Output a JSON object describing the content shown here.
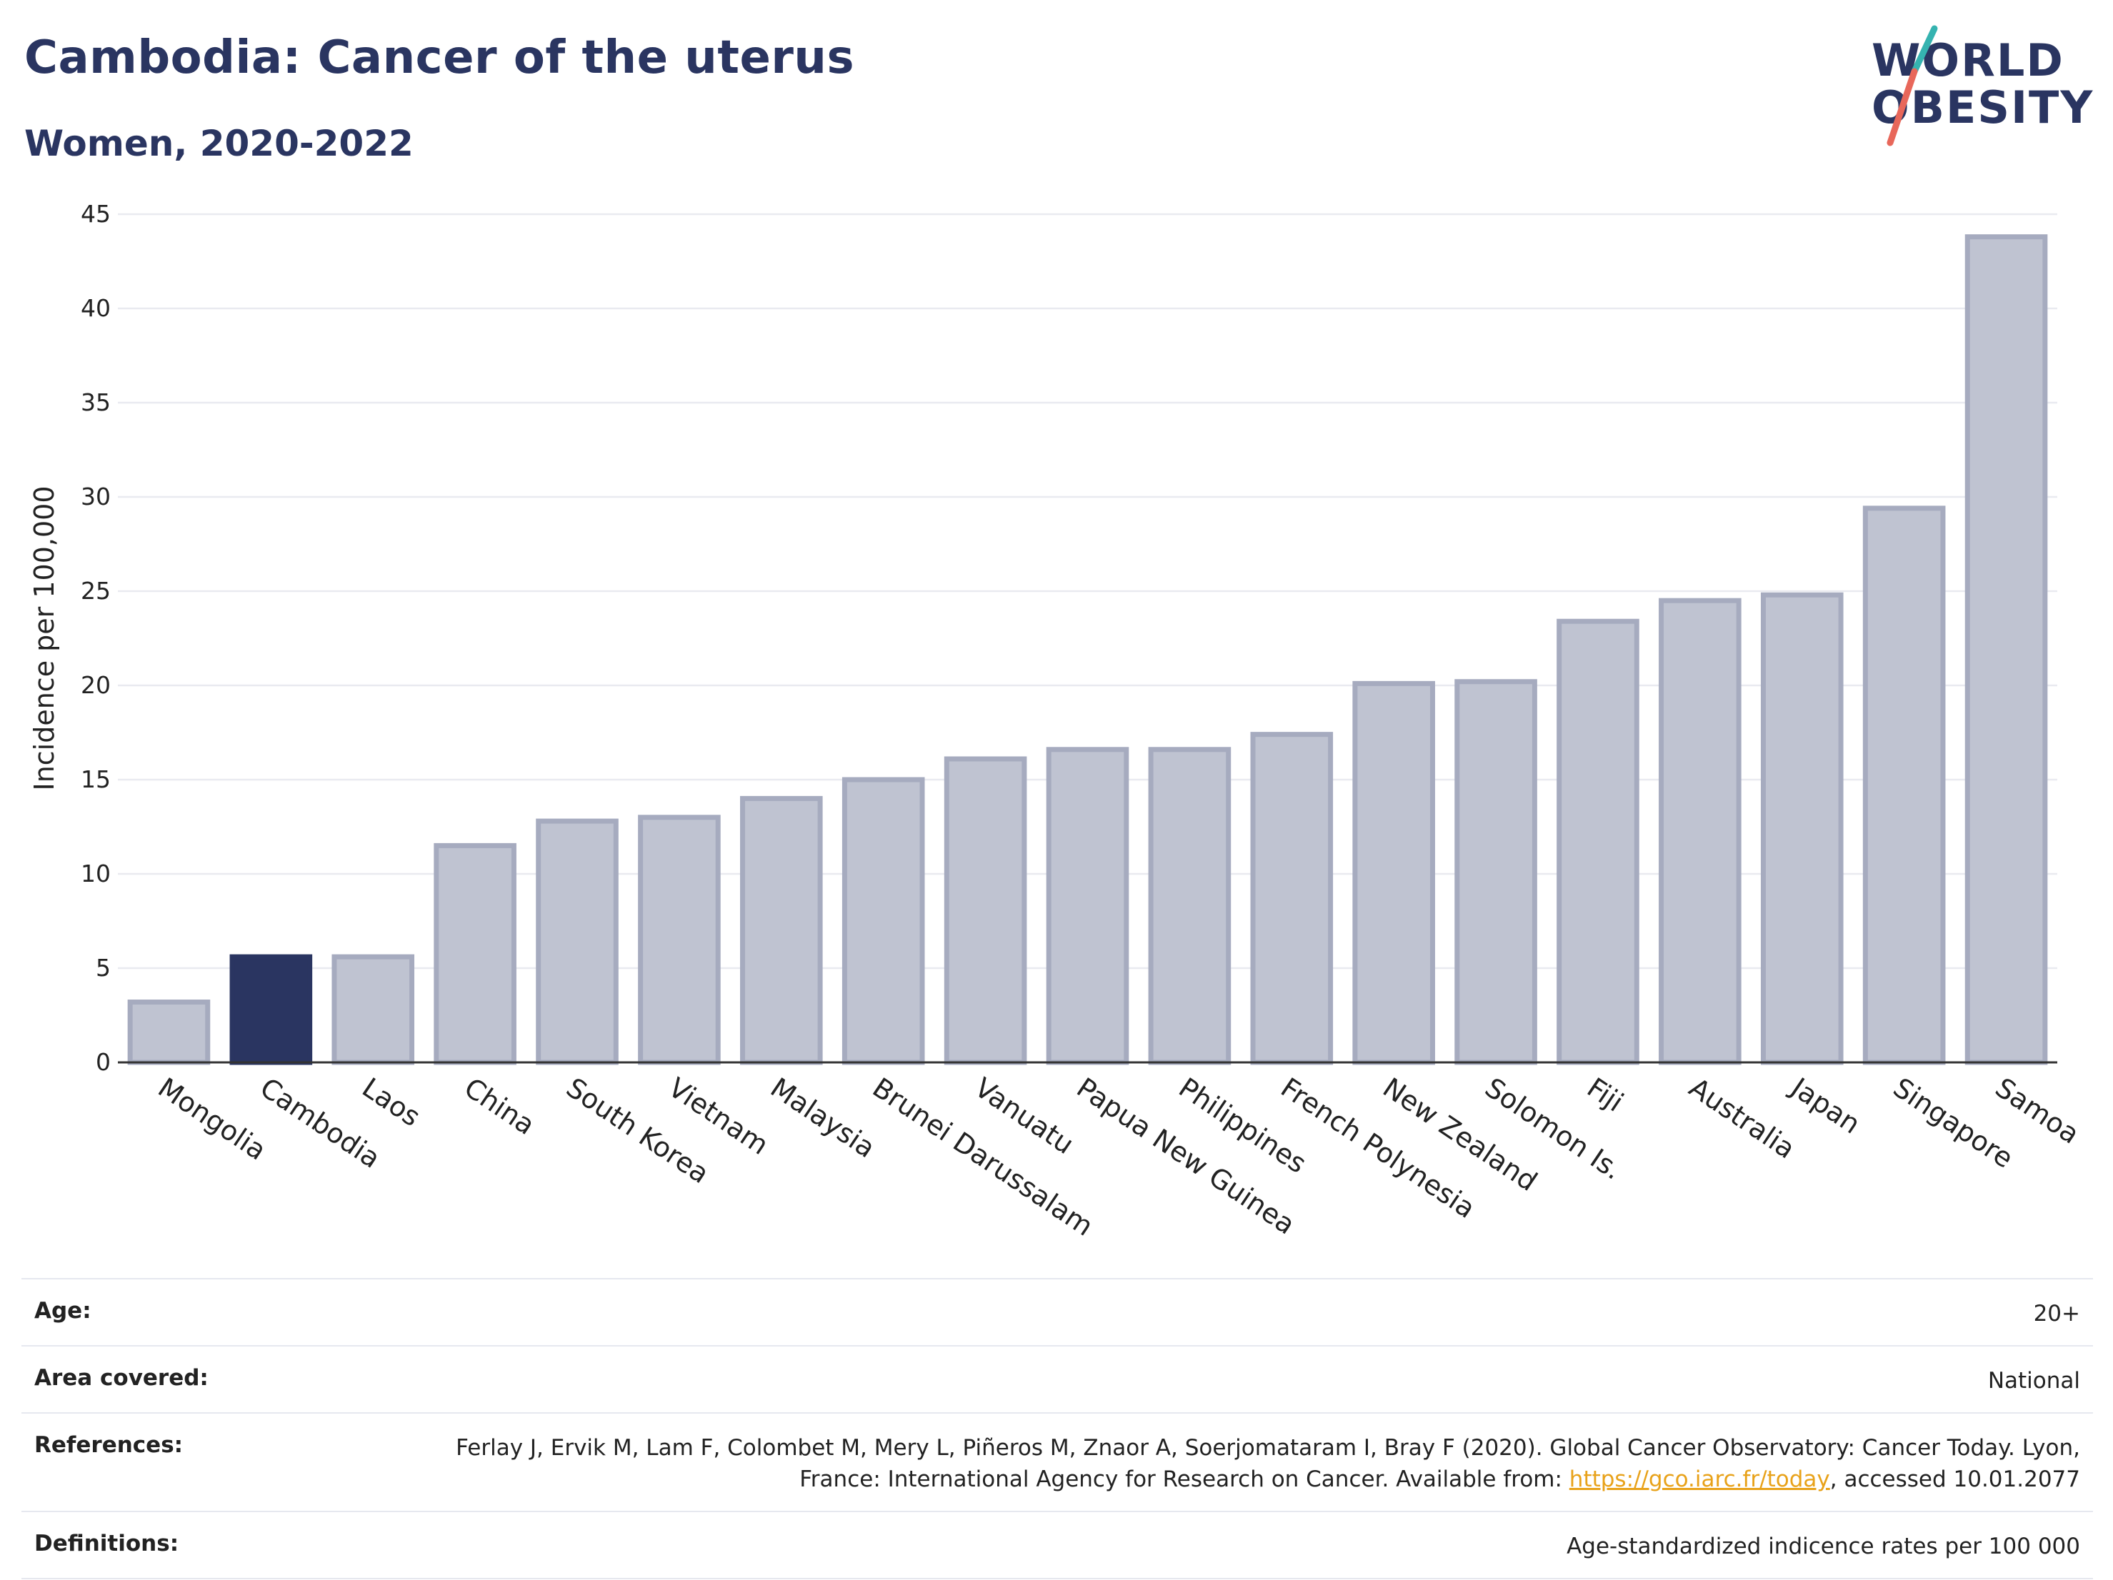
{
  "header": {
    "title": "Cambodia: Cancer of the uterus",
    "subtitle": "Women, 2020-2022"
  },
  "logo": {
    "line1": "WORLD",
    "line2": "OBESITY",
    "slash_colors": [
      "#35b3b0",
      "#e8675a"
    ]
  },
  "colors": {
    "highlight": "#2a3561",
    "bar_fill": "#bfc3d1",
    "bar_stroke": "#a6abbf",
    "grid": "#e9eaf0",
    "axis": "#333333"
  },
  "chart_data": {
    "type": "bar",
    "title": "Cambodia: Cancer of the uterus",
    "subtitle": "Women, 2020-2022",
    "xlabel": "",
    "ylabel": "Incidence per 100,000",
    "ylim": [
      0,
      45
    ],
    "yticks": [
      0,
      5,
      10,
      15,
      20,
      25,
      30,
      35,
      40,
      45
    ],
    "grid": true,
    "highlight": "Cambodia",
    "categories": [
      "Mongolia",
      "Cambodia",
      "Laos",
      "China",
      "South Korea",
      "Vietnam",
      "Malaysia",
      "Brunei Darussalam",
      "Vanuatu",
      "Papua New Guinea",
      "Philippines",
      "French Polynesia",
      "New Zealand",
      "Solomon Is.",
      "Fiji",
      "Australia",
      "Japan",
      "Singapore",
      "Samoa"
    ],
    "values": [
      3.2,
      5.6,
      5.6,
      11.5,
      12.8,
      13.0,
      14.0,
      15.0,
      16.1,
      16.6,
      16.6,
      17.4,
      20.1,
      20.2,
      23.4,
      24.5,
      24.8,
      29.4,
      43.8
    ]
  },
  "meta": {
    "rows": [
      {
        "label": "Age:",
        "value": "20+"
      },
      {
        "label": "Area covered:",
        "value": "National"
      },
      {
        "label": "References:",
        "value_before": "Ferlay J, Ervik M, Lam F, Colombet M, Mery L, Piñeros M, Znaor A, Soerjomataram I, Bray F (2020). Global Cancer Observatory: Cancer Today. Lyon, France: International Agency for Research on Cancer. Available from: ",
        "link": "https://gco.iarc.fr/today",
        "value_after": ", accessed 10.01.2077"
      },
      {
        "label": "Definitions:",
        "value": "Age-standardized indicence rates per 100 000"
      }
    ]
  }
}
